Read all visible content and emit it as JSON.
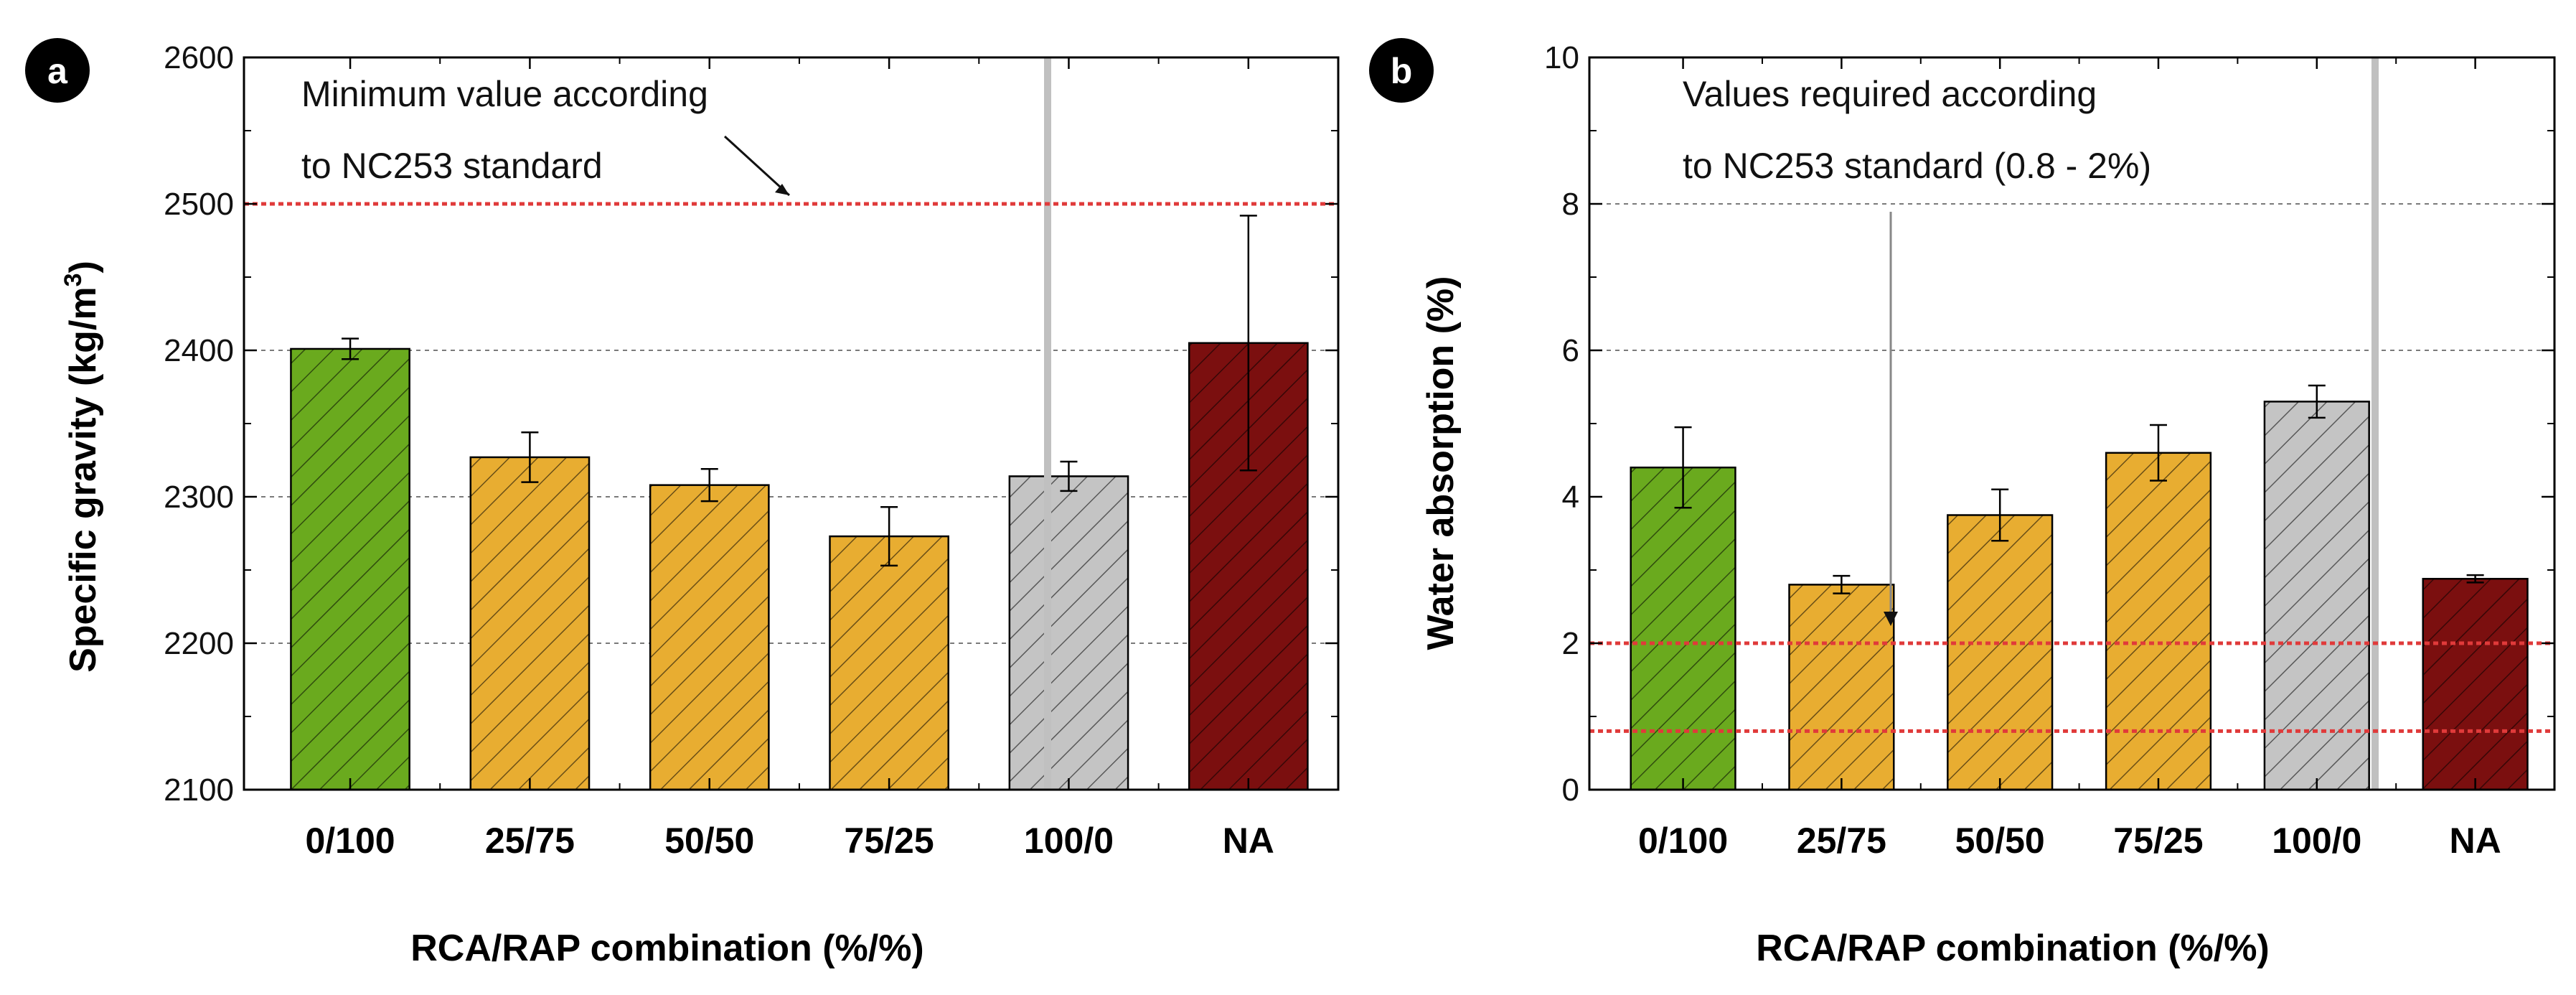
{
  "colors": {
    "green": "#6aaa1e",
    "orange": "#e8ad31",
    "gray": "#c4c4c4",
    "darkred": "#7b0f0f",
    "refline": "#e03a3a",
    "separator": "#c0c0c0"
  },
  "chart_data": [
    {
      "type": "bar",
      "badge": "a",
      "categories": [
        "0/100",
        "25/75",
        "50/50",
        "75/25",
        "100/0",
        "NA"
      ],
      "values": [
        2401,
        2327,
        2308,
        2273,
        2314,
        2405
      ],
      "errors": [
        7,
        17,
        11,
        20,
        10,
        87
      ],
      "ylabel_main": "Specific gravity (kg/m",
      "ylabel_sup": "3",
      "ylabel_end": ")",
      "xlabel": "RCA/RAP combination (%/%)",
      "ylim": [
        2100,
        2600
      ],
      "yticks": [
        "2100",
        "2200",
        "2300",
        "2400",
        "2500",
        "2600"
      ],
      "gridlines": [
        2200,
        2300,
        2400
      ],
      "reference_lines": [
        2500
      ],
      "annotation_lines": [
        "Minimum value according",
        "to NC253 standard"
      ]
    },
    {
      "type": "bar",
      "badge": "b",
      "categories": [
        "0/100",
        "25/75",
        "50/50",
        "75/25",
        "100/0",
        "NA"
      ],
      "values": [
        4.4,
        2.8,
        3.75,
        4.6,
        5.3,
        2.88
      ],
      "errors": [
        0.55,
        0.12,
        0.35,
        0.38,
        0.22,
        0.05
      ],
      "ylabel_main": "Water absorption (%)",
      "xlabel": "RCA/RAP combination (%/%)",
      "ylim": [
        0,
        10
      ],
      "yticks": [
        "0",
        "2",
        "4",
        "6",
        "8",
        "10"
      ],
      "gridlines": [
        6,
        8
      ],
      "reference_lines": [
        0.8,
        2
      ],
      "annotation_lines": [
        "Values required according",
        "to NC253 standard (0.8 - 2%)"
      ]
    }
  ]
}
